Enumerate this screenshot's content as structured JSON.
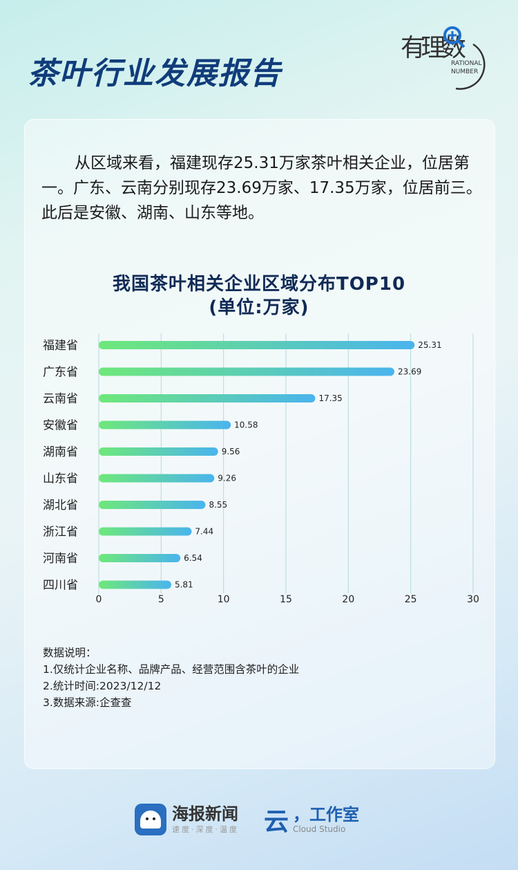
{
  "header": {
    "title": "茶叶行业发展报告",
    "logo_text": "有理数",
    "logo_sub1": "RATIONAL",
    "logo_sub2": "NUMBER"
  },
  "paragraph": "从区域来看，福建现存25.31万家茶叶相关企业，位居第一。广东、云南分别现存23.69万家、17.35万家，位居前三。此后是安徽、湖南、山东等地。",
  "chart_data": {
    "type": "bar",
    "orientation": "horizontal",
    "title": "我国茶叶相关企业区域分布TOP10",
    "subtitle": "(单位:万家)",
    "categories": [
      "福建省",
      "广东省",
      "云南省",
      "安徽省",
      "湖南省",
      "山东省",
      "湖北省",
      "浙江省",
      "河南省",
      "四川省"
    ],
    "values": [
      25.31,
      23.69,
      17.35,
      10.58,
      9.56,
      9.26,
      8.55,
      7.44,
      6.54,
      5.81
    ],
    "value_labels": [
      "25.31",
      "23.69",
      "17.35",
      "10.58",
      "9.56",
      "9.26",
      "8.55",
      "7.44",
      "6.54",
      "5.81"
    ],
    "xlim": [
      0,
      30
    ],
    "xticks": [
      "0",
      "5",
      "10",
      "15",
      "20",
      "25",
      "30"
    ],
    "grid": true,
    "colors": {
      "start": "#6ee87a",
      "end": "#4ab4ee"
    }
  },
  "notes": {
    "heading": "数据说明：",
    "items": [
      "1.仅统计企业名称、品牌产品、经营范围含茶叶的企业",
      "2.统计时间:2023/12/12",
      "3.数据来源:企查查"
    ]
  },
  "footer": {
    "brand1": "海报新闻",
    "brand1_sub": "速度·深度·温度",
    "brand2": "工作室",
    "brand2_sub": "Cloud Studio"
  }
}
